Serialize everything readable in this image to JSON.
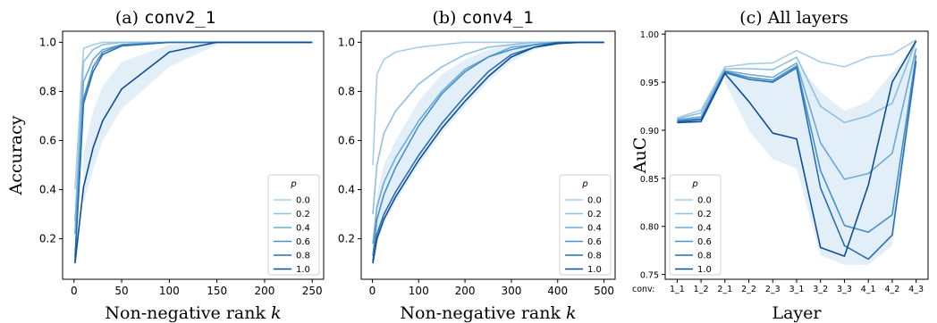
{
  "colors": [
    "#a6cde5",
    "#8dbfe0",
    "#6aaad6",
    "#4a90c5",
    "#2770b4",
    "#0e4d97"
  ],
  "band_color": "#d7e8f5",
  "chart_data": [
    {
      "type": "line",
      "title_prefix": "(a)",
      "title_code": "conv2_1",
      "xlabel": "Non-negative rank",
      "xlabel_var": "k",
      "ylabel": "Accuracy",
      "xlim": [
        -12,
        262
      ],
      "ylim": [
        0.035,
        1.045
      ],
      "xticks": [
        0,
        50,
        100,
        150,
        200,
        250
      ],
      "yticks": [
        0.2,
        0.4,
        0.6,
        0.8,
        1.0
      ],
      "ytick_labels": [
        "0.2",
        "0.4",
        "0.6",
        "0.8",
        "1.0"
      ],
      "legend": {
        "title": "p",
        "position": "lower-right"
      },
      "series": [
        {
          "name": "0.0",
          "x": [
            1,
            10,
            20,
            30,
            50,
            100,
            150,
            200,
            250
          ],
          "y": [
            0.4,
            0.975,
            0.99,
            1.0,
            1.0,
            1.0,
            1.0,
            1.0,
            1.0
          ]
        },
        {
          "name": "0.2",
          "x": [
            1,
            10,
            20,
            30,
            50,
            100,
            150,
            200,
            250
          ],
          "y": [
            0.27,
            0.92,
            0.97,
            0.99,
            1.0,
            1.0,
            1.0,
            1.0,
            1.0
          ]
        },
        {
          "name": "0.4",
          "x": [
            1,
            10,
            20,
            30,
            50,
            100,
            150,
            200,
            250
          ],
          "y": [
            0.22,
            0.84,
            0.93,
            0.97,
            0.99,
            1.0,
            1.0,
            1.0,
            1.0
          ]
        },
        {
          "name": "0.6",
          "x": [
            1,
            10,
            20,
            30,
            50,
            100,
            150,
            200,
            250
          ],
          "y": [
            0.13,
            0.77,
            0.9,
            0.96,
            0.99,
            1.0,
            1.0,
            1.0,
            1.0
          ]
        },
        {
          "name": "0.8",
          "x": [
            1,
            10,
            20,
            30,
            50,
            100,
            150,
            200,
            250
          ],
          "y": [
            0.11,
            0.75,
            0.88,
            0.95,
            0.985,
            1.0,
            1.0,
            1.0,
            1.0
          ]
        },
        {
          "name": "1.0",
          "x": [
            1,
            10,
            20,
            30,
            50,
            100,
            150,
            200,
            250
          ],
          "y": [
            0.1,
            0.41,
            0.57,
            0.68,
            0.81,
            0.96,
            1.0,
            1.0,
            1.0
          ]
        }
      ],
      "band": {
        "x": [
          10,
          20,
          30,
          50,
          100,
          150
        ],
        "upper": [
          0.55,
          0.72,
          0.82,
          0.92,
          0.99,
          1.0
        ],
        "lower": [
          0.34,
          0.48,
          0.6,
          0.73,
          0.9,
          0.99
        ]
      }
    },
    {
      "type": "line",
      "title_prefix": "(b)",
      "title_code": "conv4_1",
      "xlabel": "Non-negative rank",
      "xlabel_var": "k",
      "ylabel": "",
      "xlim": [
        -24,
        524
      ],
      "ylim": [
        0.035,
        1.045
      ],
      "xticks": [
        0,
        100,
        200,
        300,
        400,
        500
      ],
      "yticks": [
        0.2,
        0.4,
        0.6,
        0.8,
        1.0
      ],
      "ytick_labels": [
        "0.2",
        "0.4",
        "0.6",
        "0.8",
        "1.0"
      ],
      "legend": {
        "title": "p",
        "position": "lower-right"
      },
      "series": [
        {
          "name": "0.0",
          "x": [
            1,
            10,
            25,
            50,
            100,
            150,
            200,
            250,
            300,
            350,
            400,
            450,
            500
          ],
          "y": [
            0.5,
            0.87,
            0.93,
            0.96,
            0.98,
            0.99,
            1.0,
            1.0,
            1.0,
            1.0,
            1.0,
            1.0,
            1.0
          ]
        },
        {
          "name": "0.2",
          "x": [
            1,
            10,
            25,
            50,
            100,
            150,
            200,
            250,
            300,
            350,
            400,
            450,
            500
          ],
          "y": [
            0.3,
            0.5,
            0.63,
            0.72,
            0.83,
            0.9,
            0.95,
            0.98,
            0.99,
            1.0,
            1.0,
            1.0,
            1.0
          ]
        },
        {
          "name": "0.4",
          "x": [
            1,
            10,
            25,
            50,
            100,
            150,
            200,
            250,
            300,
            350,
            400,
            450,
            500
          ],
          "y": [
            0.18,
            0.33,
            0.43,
            0.53,
            0.68,
            0.8,
            0.89,
            0.94,
            0.98,
            0.99,
            1.0,
            1.0,
            1.0
          ]
        },
        {
          "name": "0.6",
          "x": [
            1,
            10,
            25,
            50,
            100,
            150,
            200,
            250,
            300,
            350,
            400,
            450,
            500
          ],
          "y": [
            0.13,
            0.28,
            0.38,
            0.49,
            0.66,
            0.79,
            0.88,
            0.94,
            0.97,
            0.99,
            1.0,
            1.0,
            1.0
          ]
        },
        {
          "name": "0.8",
          "x": [
            1,
            10,
            25,
            50,
            100,
            150,
            200,
            250,
            300,
            350,
            400,
            450,
            500
          ],
          "y": [
            0.11,
            0.22,
            0.3,
            0.39,
            0.54,
            0.67,
            0.78,
            0.88,
            0.95,
            0.98,
            1.0,
            1.0,
            1.0
          ]
        },
        {
          "name": "1.0",
          "x": [
            1,
            10,
            25,
            50,
            100,
            150,
            200,
            250,
            300,
            350,
            400,
            450,
            500
          ],
          "y": [
            0.1,
            0.2,
            0.28,
            0.37,
            0.52,
            0.65,
            0.76,
            0.86,
            0.94,
            0.98,
            0.995,
            1.0,
            1.0
          ]
        }
      ],
      "band": {
        "x": [
          10,
          25,
          50,
          100,
          150,
          200,
          250,
          300,
          350,
          400
        ],
        "upper": [
          0.38,
          0.5,
          0.6,
          0.76,
          0.87,
          0.93,
          0.97,
          0.99,
          1.0,
          1.0
        ],
        "lower": [
          0.18,
          0.26,
          0.35,
          0.5,
          0.63,
          0.74,
          0.84,
          0.92,
          0.97,
          0.99
        ]
      }
    },
    {
      "type": "line",
      "title_prefix": "(c)",
      "title_text": "All layers",
      "xlabel": "Layer",
      "ylabel": "AuC",
      "x_prefix": "conv:",
      "categories": [
        "1_1",
        "1_2",
        "2_1",
        "2_2",
        "2_3",
        "3_1",
        "3_2",
        "3_3",
        "4_1",
        "4_2",
        "4_3"
      ],
      "xlim": [
        -0.5,
        10.5
      ],
      "ylim": [
        0.745,
        1.003
      ],
      "yticks": [
        0.75,
        0.8,
        0.85,
        0.9,
        0.95,
        1.0
      ],
      "ytick_labels": [
        "0.75",
        "0.80",
        "0.85",
        "0.90",
        "0.95",
        "1.00"
      ],
      "legend": {
        "title": "p",
        "position": "lower-left"
      },
      "series": [
        {
          "name": "0.0",
          "values": [
            0.913,
            0.921,
            0.966,
            0.969,
            0.97,
            0.983,
            0.971,
            0.966,
            0.976,
            0.979,
            0.994
          ]
        },
        {
          "name": "0.2",
          "values": [
            0.912,
            0.918,
            0.964,
            0.964,
            0.963,
            0.976,
            0.925,
            0.908,
            0.915,
            0.928,
            0.993
          ]
        },
        {
          "name": "0.4",
          "values": [
            0.911,
            0.914,
            0.962,
            0.958,
            0.955,
            0.97,
            0.887,
            0.849,
            0.855,
            0.876,
            0.985
          ]
        },
        {
          "name": "0.6",
          "values": [
            0.91,
            0.912,
            0.961,
            0.955,
            0.952,
            0.967,
            0.858,
            0.801,
            0.794,
            0.812,
            0.978
          ]
        },
        {
          "name": "0.8",
          "values": [
            0.909,
            0.911,
            0.96,
            0.953,
            0.95,
            0.965,
            0.84,
            0.78,
            0.766,
            0.791,
            0.972
          ]
        },
        {
          "name": "1.0",
          "values": [
            0.908,
            0.909,
            0.959,
            0.93,
            0.897,
            0.891,
            0.778,
            0.769,
            0.843,
            0.95,
            0.993
          ]
        }
      ],
      "band": {
        "x": [
          2,
          3,
          4,
          5,
          6,
          7,
          8,
          9,
          10
        ],
        "upper": [
          0.962,
          0.955,
          0.953,
          0.97,
          0.94,
          0.92,
          0.93,
          0.96,
          0.99
        ],
        "lower": [
          0.95,
          0.9,
          0.87,
          0.86,
          0.77,
          0.76,
          0.76,
          0.78,
          0.96
        ]
      }
    }
  ]
}
